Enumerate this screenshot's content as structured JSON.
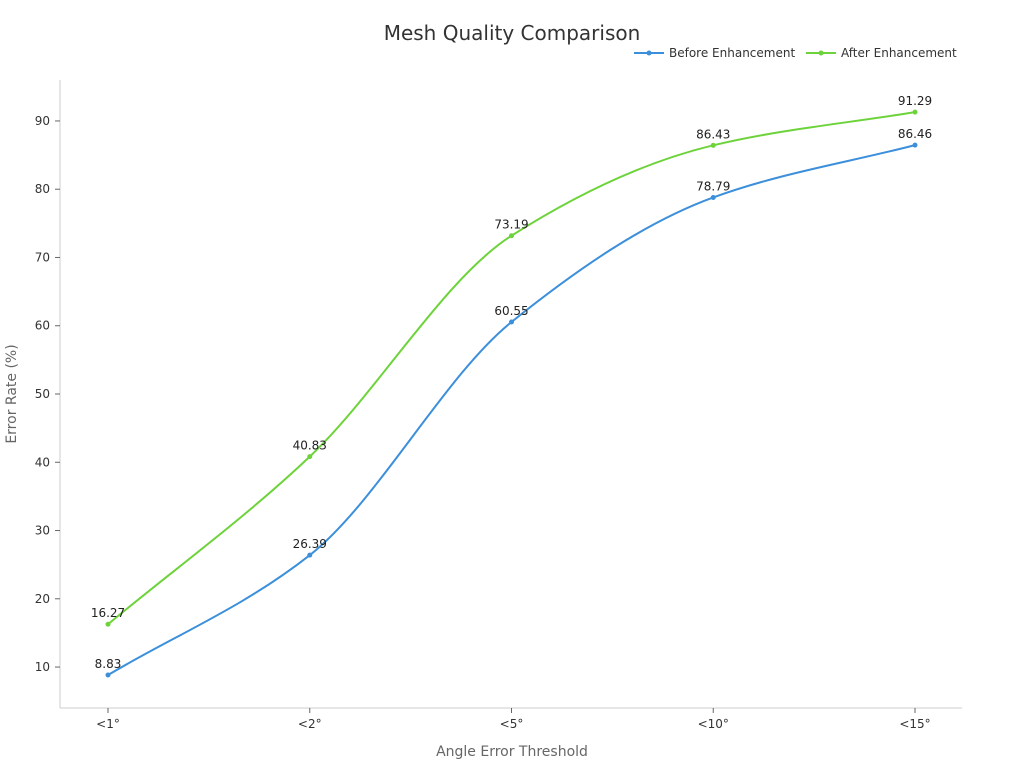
{
  "chart_data": {
    "type": "line",
    "title": "Mesh Quality Comparison",
    "xlabel": "Angle Error Threshold",
    "ylabel": "Error Rate (%)",
    "categories": [
      "<1°",
      "<2°",
      "<5°",
      "<10°",
      "<15°"
    ],
    "ylim": [
      4,
      96
    ],
    "yticks": [
      10,
      20,
      30,
      40,
      50,
      60,
      70,
      80,
      90
    ],
    "grid": false,
    "legend_position": "top-right",
    "series": [
      {
        "name": "Before Enhancement",
        "color": "#3b8fdb",
        "values": [
          8.83,
          26.39,
          60.55,
          78.79,
          86.46
        ],
        "labels": [
          "8.83",
          "26.39",
          "60.55",
          "78.79",
          "86.46"
        ]
      },
      {
        "name": "After Enhancement",
        "color": "#6dd33a",
        "values": [
          16.27,
          40.83,
          73.19,
          86.43,
          91.29
        ],
        "labels": [
          "16.27",
          "40.83",
          "73.19",
          "86.43",
          "91.29"
        ]
      }
    ]
  }
}
